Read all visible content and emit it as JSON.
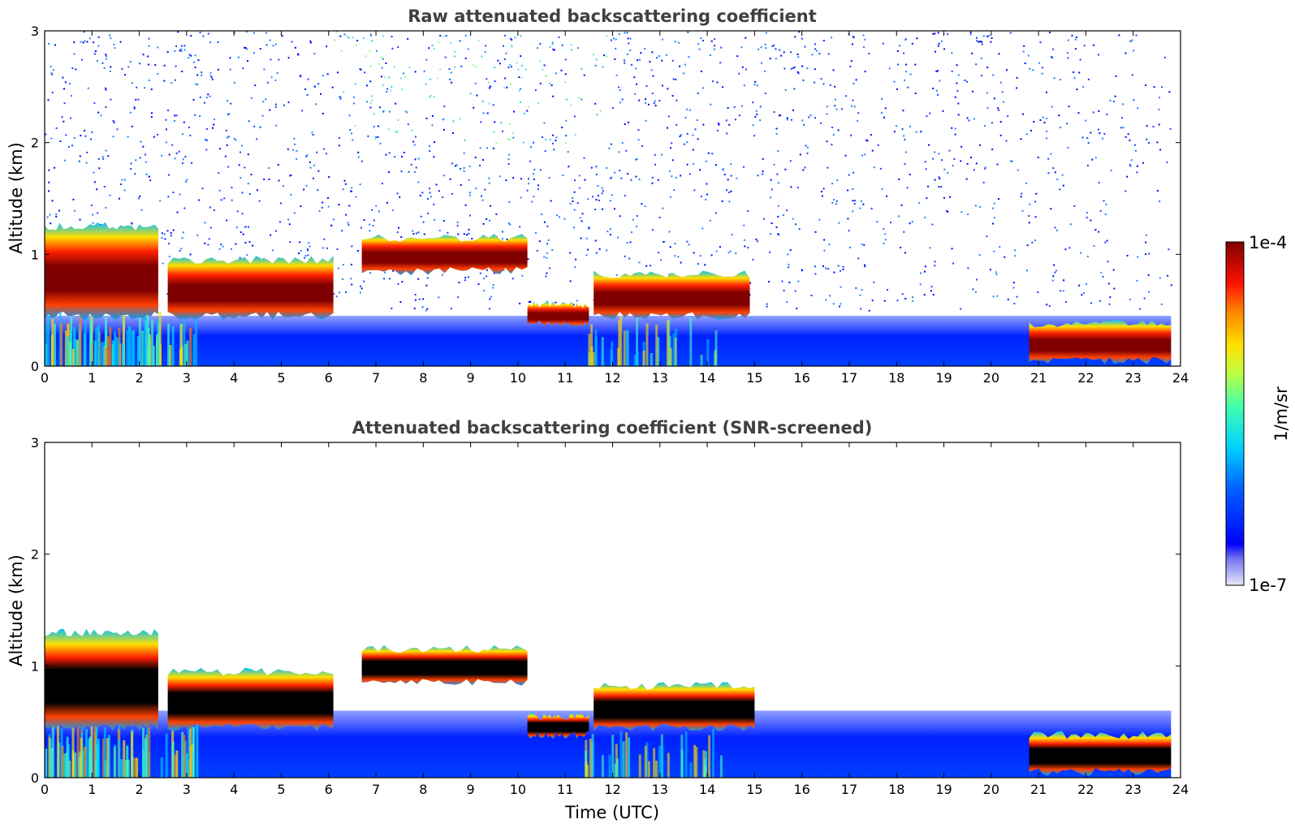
{
  "chart_data": [
    {
      "type": "heatmap",
      "title": "Raw attenuated backscattering coefficient",
      "xlabel": "",
      "ylabel": "Altitude (km)",
      "xlim": [
        0,
        24
      ],
      "ylim": [
        0,
        3
      ],
      "x_ticks": [
        "0",
        "1",
        "2",
        "3",
        "4",
        "5",
        "6",
        "7",
        "8",
        "9",
        "10",
        "11",
        "12",
        "13",
        "14",
        "15",
        "16",
        "17",
        "18",
        "19",
        "20",
        "21",
        "22",
        "23",
        "24"
      ],
      "y_ticks": [
        "0",
        "1",
        "2",
        "3"
      ],
      "layers": [
        {
          "x": [
            0,
            2.4
          ],
          "bottom": 0.45,
          "top": 1.25,
          "level": "high"
        },
        {
          "x": [
            2.6,
            6.1
          ],
          "bottom": 0.45,
          "top": 0.95,
          "level": "high"
        },
        {
          "x": [
            6.7,
            10.2
          ],
          "bottom": 0.85,
          "top": 1.15,
          "level": "high"
        },
        {
          "x": [
            10.2,
            11.5
          ],
          "bottom": 0.38,
          "top": 0.55,
          "level": "high"
        },
        {
          "x": [
            11.6,
            14.9
          ],
          "bottom": 0.45,
          "top": 0.82,
          "level": "high"
        },
        {
          "x": [
            20.8,
            23.8
          ],
          "bottom": 0.05,
          "top": 0.38,
          "level": "high"
        }
      ],
      "boundary_layer": {
        "x": [
          0,
          23.8
        ],
        "top": 0.45,
        "level": "low"
      },
      "noise_region": {
        "x": [
          0,
          23.8
        ],
        "bottom": 0.5,
        "top": 3.0,
        "level": "low"
      }
    },
    {
      "type": "heatmap",
      "title": "Attenuated backscattering coefficient (SNR-screened)",
      "xlabel": "Time (UTC)",
      "ylabel": "Altitude (km)",
      "xlim": [
        0,
        24
      ],
      "ylim": [
        0,
        3
      ],
      "x_ticks": [
        "0",
        "1",
        "2",
        "3",
        "4",
        "5",
        "6",
        "7",
        "8",
        "9",
        "10",
        "11",
        "12",
        "13",
        "14",
        "15",
        "16",
        "17",
        "18",
        "19",
        "20",
        "21",
        "22",
        "23",
        "24"
      ],
      "y_ticks": [
        "0",
        "1",
        "2",
        "3"
      ],
      "layers": [
        {
          "x": [
            0,
            2.4
          ],
          "bottom": 0.45,
          "top": 1.3,
          "level": "saturated"
        },
        {
          "x": [
            2.6,
            6.1
          ],
          "bottom": 0.45,
          "top": 0.95,
          "level": "saturated"
        },
        {
          "x": [
            6.7,
            10.2
          ],
          "bottom": 0.85,
          "top": 1.15,
          "level": "saturated"
        },
        {
          "x": [
            10.2,
            11.5
          ],
          "bottom": 0.38,
          "top": 0.55,
          "level": "saturated"
        },
        {
          "x": [
            11.6,
            15.0
          ],
          "bottom": 0.45,
          "top": 0.82,
          "level": "saturated"
        },
        {
          "x": [
            20.8,
            23.8
          ],
          "bottom": 0.05,
          "top": 0.38,
          "level": "saturated"
        }
      ],
      "boundary_layer": {
        "x": [
          0,
          23.8
        ],
        "top": 0.6,
        "level": "low"
      }
    }
  ],
  "colorbar": {
    "label": "1/m/sr",
    "max_label": "1e-4",
    "min_label": "1e-7",
    "scale": "log",
    "colors": [
      "#e8e8f8",
      "#0000ff",
      "#0080ff",
      "#00e0ff",
      "#80ff80",
      "#ffff00",
      "#ff8000",
      "#ff0000",
      "#800000"
    ]
  }
}
